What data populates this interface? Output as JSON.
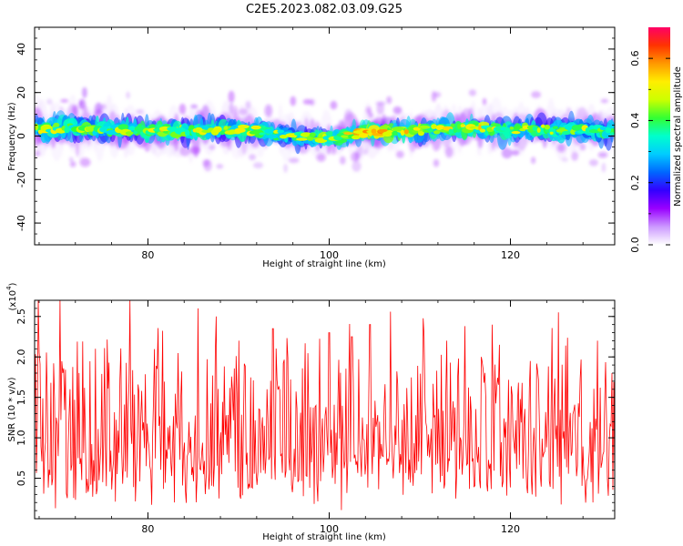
{
  "figure_title": "C2E5.2023.082.03.09.G25",
  "chart_data": [
    {
      "type": "heatmap",
      "title": "C2E5.2023.082.03.09.G25",
      "xlabel": "Height of straight line (km)",
      "ylabel": "Frequency (Hz)",
      "xlim": [
        67.5,
        131.5
      ],
      "ylim": [
        -50,
        50
      ],
      "xticks": [
        80,
        100,
        120
      ],
      "yticks": [
        -40,
        -20,
        0,
        20,
        40
      ],
      "colorbar": {
        "label": "Normalized spectral amplitude",
        "range": [
          0,
          0.7
        ],
        "ticks": [
          0.0,
          0.2,
          0.4,
          0.6
        ],
        "colormap": [
          "#ffffff",
          "#cc99ff",
          "#9900ff",
          "#3300ff",
          "#0066ff",
          "#00ccff",
          "#00ffcc",
          "#33ff33",
          "#ccff00",
          "#ffee00",
          "#ff9900",
          "#ff3300",
          "#ff0066"
        ]
      },
      "band": {
        "x": [
          68,
          72,
          76,
          80,
          84,
          88,
          92,
          96,
          100,
          104,
          108,
          112,
          116,
          120,
          124,
          128,
          131
        ],
        "center_hz": [
          3,
          3.5,
          3,
          2,
          2.5,
          3,
          2.5,
          0,
          -1,
          1.5,
          2.5,
          3,
          4,
          2.5,
          3,
          3,
          2
        ],
        "halfwidth_hz": [
          7,
          7,
          6.5,
          6,
          7,
          6,
          6,
          5.5,
          5,
          5.5,
          5.5,
          6,
          6,
          6,
          6,
          6,
          6
        ],
        "peak_amplitude": [
          0.45,
          0.42,
          0.42,
          0.5,
          0.47,
          0.45,
          0.43,
          0.42,
          0.45,
          0.62,
          0.5,
          0.46,
          0.5,
          0.44,
          0.45,
          0.43,
          0.42
        ]
      }
    },
    {
      "type": "line",
      "xlabel": "Height of straight line (km)",
      "ylabel": "SNR (10 * v/v)",
      "y_multiplier_label": "(x10",
      "y_multiplier_exp": "4",
      "xlim": [
        67.5,
        131.5
      ],
      "ylim": [
        0,
        2.7
      ],
      "xticks": [
        80,
        100,
        120
      ],
      "yticks": [
        0.5,
        1.0,
        1.5,
        2.0,
        2.5
      ],
      "yticklabels": [
        "0.5",
        "1.0",
        "1.5",
        "2.0",
        "2.5"
      ],
      "color": "#ff0000",
      "sampling": {
        "x_start": 67.5,
        "x_end": 131.5,
        "points": 640
      },
      "series": [
        {
          "peaks": {
            "x": [
              70.3,
              74.2,
              78.0,
              85.5,
              87.5,
              90.0,
              93.8,
              100.0,
              102.5,
              104.5,
              110.5,
              113.0,
              116.8,
              118.8,
              122.2,
              125.3,
              129.6,
              131.2
            ],
            "y": [
              2.7,
              2.1,
              2.7,
              2.6,
              2.5,
              2.2,
              2.35,
              2.3,
              2.25,
              2.4,
              2.25,
              2.2,
              2.0,
              2.15,
              1.95,
              2.55,
              2.2,
              1.8
            ]
          },
          "baseline_mean": 1.0,
          "baseline_min": 0.1
        }
      ]
    }
  ]
}
